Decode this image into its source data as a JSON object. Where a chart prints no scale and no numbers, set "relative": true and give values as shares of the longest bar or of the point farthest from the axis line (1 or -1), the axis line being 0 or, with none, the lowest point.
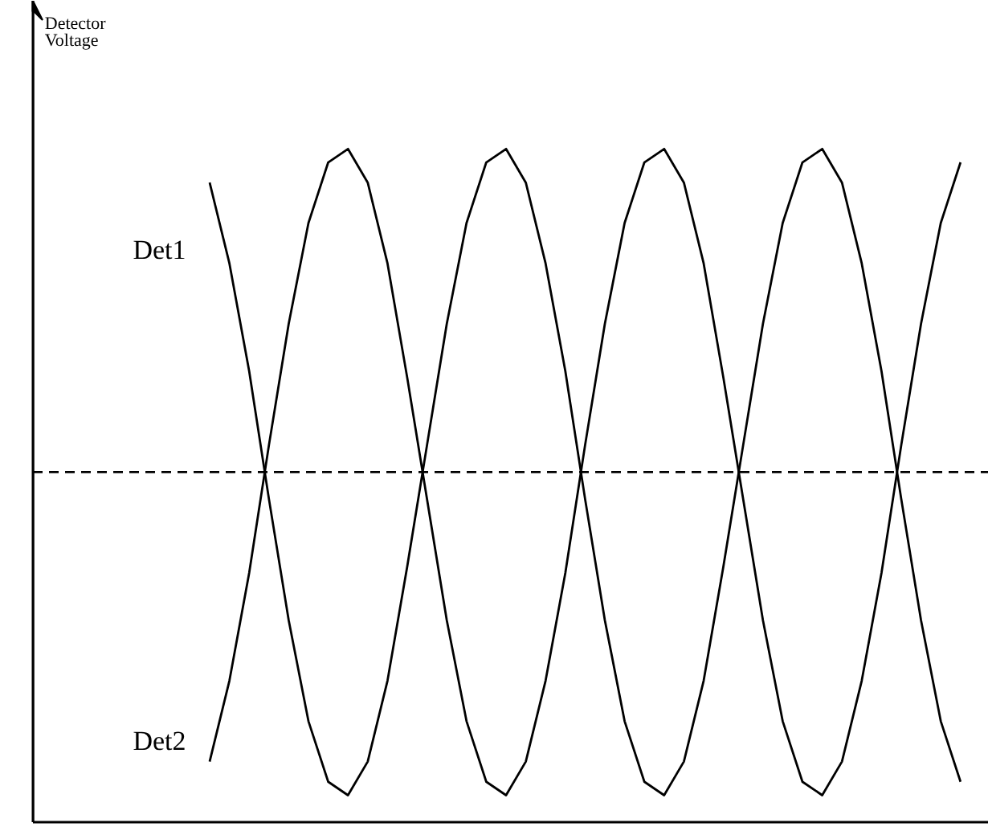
{
  "chart_data": {
    "type": "line",
    "relative": true,
    "annotations": [
      "Detector Voltage"
    ],
    "categories": [
      null,
      null,
      null,
      null,
      null,
      null,
      null,
      null,
      null,
      null,
      null,
      null,
      null,
      null,
      null,
      null,
      null,
      null,
      null,
      null,
      null,
      null,
      null,
      null,
      null,
      null,
      null,
      null,
      null,
      null,
      null,
      null,
      null,
      null,
      null,
      null,
      null,
      null,
      null
    ],
    "series": [
      {
        "name": "Det1",
        "color": "#000000",
        "values": [
          0.95,
          0.83,
          0.67,
          0.48,
          0.3,
          0.15,
          0.06,
          0.04,
          0.09,
          0.21,
          0.38,
          0.56,
          0.74,
          0.89,
          0.98,
          1.0,
          0.95,
          0.83,
          0.67,
          0.48,
          0.3,
          0.15,
          0.06,
          0.04,
          0.09,
          0.21,
          0.38,
          0.56,
          0.74,
          0.89,
          0.98,
          1.0,
          0.95,
          0.83,
          0.67,
          0.48,
          0.3,
          0.15,
          0.06
        ]
      },
      {
        "name": "Det2",
        "color": "#000000",
        "values": [
          0.09,
          0.21,
          0.37,
          0.56,
          0.74,
          0.89,
          0.98,
          1.0,
          0.95,
          0.83,
          0.66,
          0.48,
          0.3,
          0.15,
          0.06,
          0.04,
          0.09,
          0.21,
          0.37,
          0.56,
          0.74,
          0.89,
          0.98,
          1.0,
          0.95,
          0.83,
          0.66,
          0.48,
          0.3,
          0.15,
          0.06,
          0.04,
          0.09,
          0.21,
          0.37,
          0.56,
          0.74,
          0.89,
          0.98
        ]
      }
    ],
    "ref_lines": [
      {
        "axis": "y",
        "value": 0.52,
        "line_style": "dashed",
        "color": "#000000"
      }
    ],
    "grid": false,
    "marker": "none",
    "line_style": "solid",
    "tick_labels": false
  }
}
